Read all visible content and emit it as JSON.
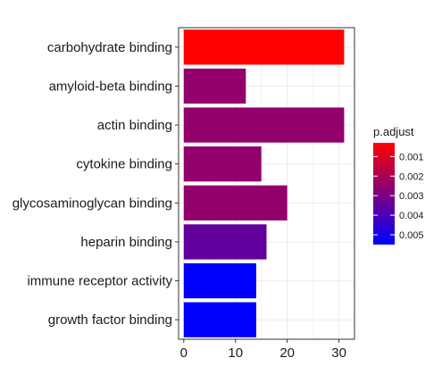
{
  "chart_data": {
    "type": "bar",
    "orientation": "horizontal",
    "categories": [
      "carbohydrate binding",
      "amyloid-beta binding",
      "actin binding",
      "cytokine binding",
      "glycosaminoglycan binding",
      "heparin binding",
      "immune receptor activity",
      "growth factor binding"
    ],
    "values": [
      31,
      12,
      31,
      15,
      20,
      16,
      14,
      14
    ],
    "p_adjust": [
      0.0003,
      0.0025,
      0.0025,
      0.0025,
      0.0025,
      0.0035,
      0.0055,
      0.0055
    ],
    "xlim": [
      -1,
      33
    ],
    "x_ticks": [
      0,
      10,
      20,
      30
    ],
    "x_tick_labels": [
      "0",
      "10",
      "20",
      "30"
    ],
    "xlabel": "",
    "ylabel": "",
    "grid": true,
    "legend": {
      "title": "p.adjust",
      "placement": "right",
      "type": "colorbar",
      "range": [
        0.0003,
        0.0055
      ],
      "ticks": [
        0.001,
        0.002,
        0.003,
        0.004,
        0.005
      ],
      "tick_labels": [
        "0.001",
        "0.002",
        "0.003",
        "0.004",
        "0.005"
      ],
      "color_low_value": "#FF0000",
      "color_high_value": "#0000FF"
    }
  }
}
